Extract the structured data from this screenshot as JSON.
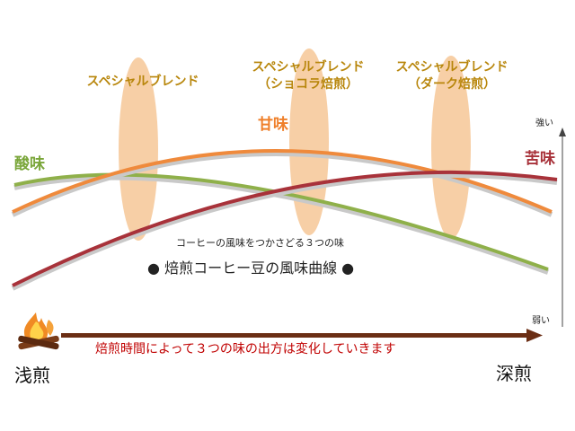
{
  "colors": {
    "background": "#ffffff",
    "ellipse": "#f6c797",
    "blend_label": "#b8860b",
    "sourness": "#8fb04a",
    "sweetness": "#ef8a3c",
    "bitterness": "#a8323a",
    "roast_arrow": "#6b2e14",
    "caption_red": "#c00000",
    "title_text": "#222222"
  },
  "blends": [
    {
      "line1": "スペシャルブレンド",
      "line2": ""
    },
    {
      "line1": "スペシャルブレンド",
      "line2": "（ショコラ焙煎）"
    },
    {
      "line1": "スペシャルブレンド",
      "line2": "（ダーク焙煎）"
    }
  ],
  "tastes": {
    "sourness": "酸味",
    "sweetness": "甘味",
    "bitterness": "苦味"
  },
  "scale": {
    "strong": "強い",
    "weak": "弱い"
  },
  "subtitle": "コーヒーの風味をつかさどる３つの味",
  "title": {
    "bullet_left": "●",
    "text": "焙煎コーヒー豆の風味曲線",
    "bullet_right": "●"
  },
  "roast": {
    "light": "浅煎",
    "deep": "深煎",
    "caption": "焙煎時間によって３つの味の出方は変化していきます",
    "fire_icon": "campfire-icon"
  }
}
